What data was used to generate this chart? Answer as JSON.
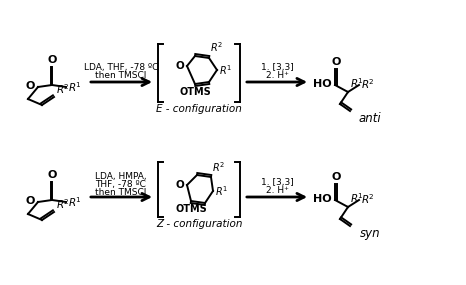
{
  "background_color": "#ffffff",
  "line_color": "#000000",
  "text_color": "#000000",
  "top_reaction": {
    "reagent1": "LDA, THF, -78 ºC",
    "reagent2": "then TMSCl",
    "step2a": "1. [3,3]",
    "step2b": "2. H⁺",
    "intermediate_label": "E - configuration",
    "product_label": "anti"
  },
  "bottom_reaction": {
    "reagent1": "LDA, HMPA,",
    "reagent2": "THF, -78 ºC",
    "reagent3": "then TMSCl",
    "step2a": "1. [3,3]",
    "step2b": "2. H⁺",
    "intermediate_label": "Z - configuration",
    "product_label": "syn"
  }
}
